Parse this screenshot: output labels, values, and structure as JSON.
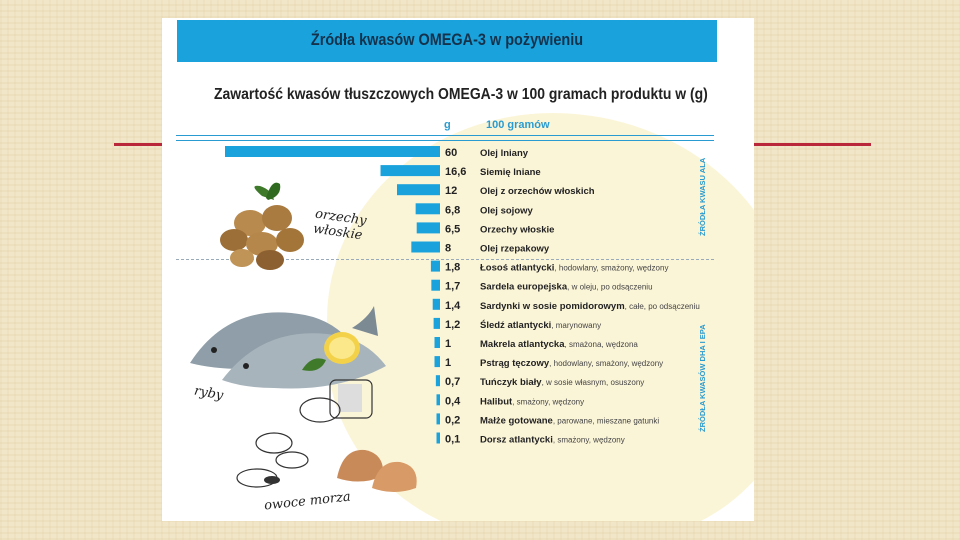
{
  "header": {
    "title": "Źródła kwasów OMEGA-3 w pożywieniu"
  },
  "columns": {
    "unit": "g",
    "per": "100 gramów"
  },
  "side_labels": {
    "top": "ŹRÓDŁA KWASU ALA",
    "bottom": "ŹRÓDŁA KWASÓW DHA I EPA"
  },
  "images": {
    "nuts": "orzechy włoskie",
    "fish": "ryby",
    "seafood": "owoce morza"
  },
  "colors": {
    "bar": "#1aa2dc",
    "header": "#1aa2dc",
    "accent_line": "#b8273a"
  },
  "chart_data": {
    "type": "bar",
    "orientation": "horizontal",
    "title": "Zawartość kwasów tłuszczowych OMEGA-3 w 100 gramach produktu w (g)",
    "items": [
      {
        "label": "Olej lniany",
        "note": "",
        "value_text": "60",
        "value": 60
      },
      {
        "label": "Siemię lniane",
        "note": "",
        "value_text": "16,6",
        "value": 16.6
      },
      {
        "label": "Olej z orzechów włoskich",
        "note": "",
        "value_text": "12",
        "value": 12
      },
      {
        "label": "Olej sojowy",
        "note": "",
        "value_text": "6,8",
        "value": 6.8
      },
      {
        "label": "Orzechy włoskie",
        "note": "",
        "value_text": "6,5",
        "value": 6.5
      },
      {
        "label": "Olej rzepakowy",
        "note": "",
        "value_text": "8",
        "value": 8
      },
      {
        "label": "Łosoś atlantycki",
        "note": "hodowlany, smażony, wędzony",
        "value_text": "1,8",
        "value": 1.8
      },
      {
        "label": "Sardela europejska",
        "note": "w oleju, po odsączeniu",
        "value_text": "1,7",
        "value": 1.7
      },
      {
        "label": "Sardynki w sosie pomidorowym",
        "note": "całe, po odsączeniu",
        "value_text": "1,4",
        "value": 1.4
      },
      {
        "label": "Śledź atlantycki",
        "note": "marynowany",
        "value_text": "1,2",
        "value": 1.2
      },
      {
        "label": "Makrela atlantycka",
        "note": "smażona, wędzona",
        "value_text": "1",
        "value": 1
      },
      {
        "label": "Pstrąg tęczowy",
        "note": "hodowlany, smażony, wędzony",
        "value_text": "1",
        "value": 1
      },
      {
        "label": "Tuńczyk biały",
        "note": "w sosie własnym, osuszony",
        "value_text": "0,7",
        "value": 0.7
      },
      {
        "label": "Halibut",
        "note": "smażony, wędzony",
        "value_text": "0,4",
        "value": 0.4
      },
      {
        "label": "Małże gotowane",
        "note": "parowane, mieszane gatunki",
        "value_text": "0,2",
        "value": 0.2
      },
      {
        "label": "Dorsz atlantycki",
        "note": "smażony, wędzony",
        "value_text": "0,1",
        "value": 0.1
      }
    ]
  }
}
